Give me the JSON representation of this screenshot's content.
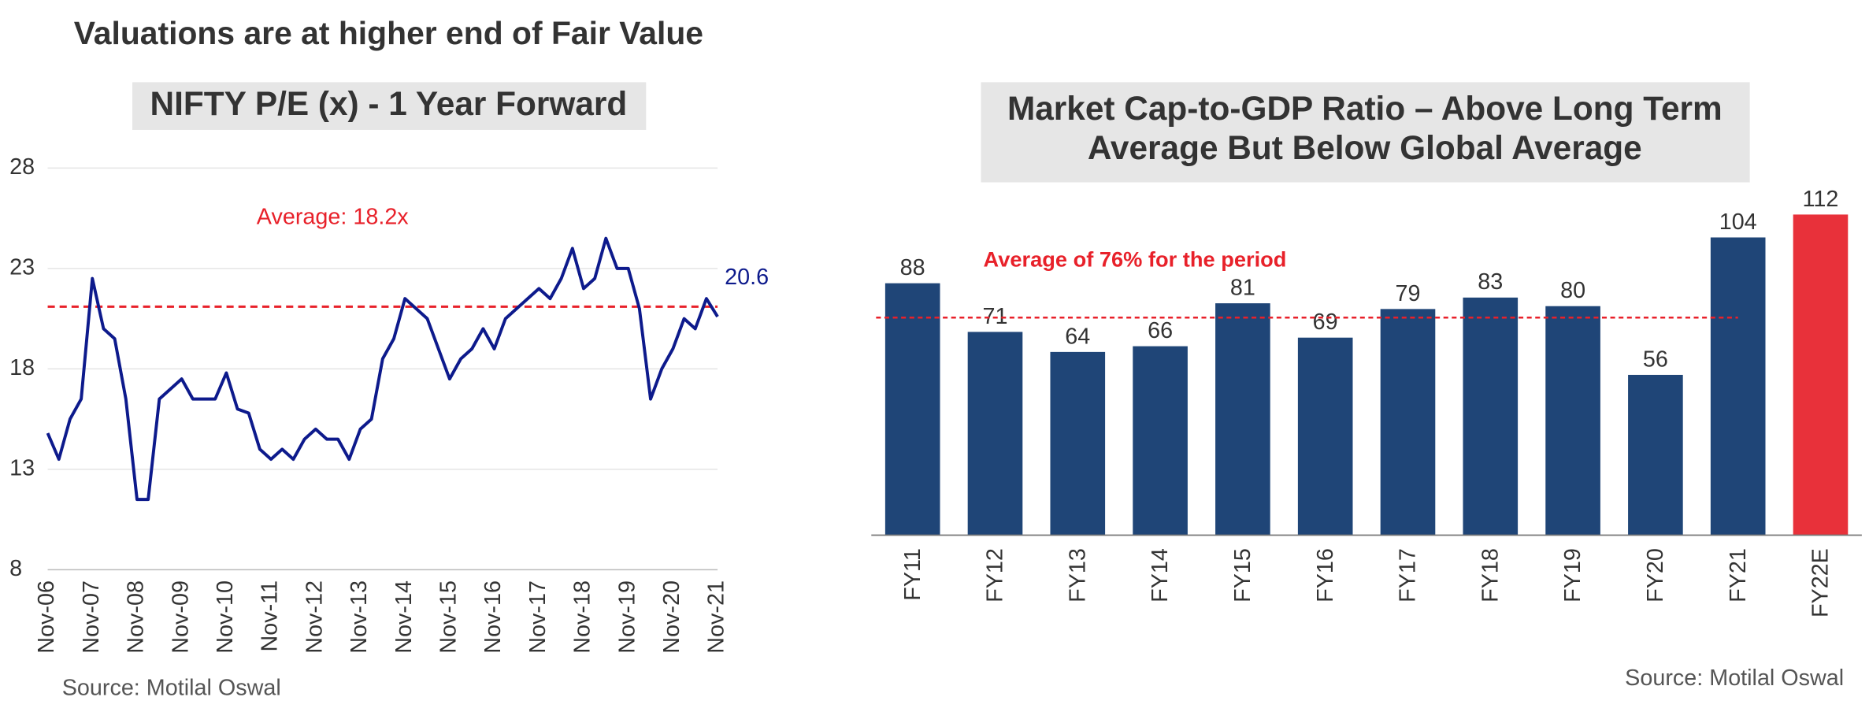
{
  "title": "Valuations are at higher end of Fair Value",
  "chart_data": [
    {
      "type": "line",
      "title": "NIFTY P/E (x) - 1 Year Forward",
      "categories": [
        "Nov-06",
        null,
        null,
        null,
        "Nov-07",
        null,
        null,
        null,
        "Nov-08",
        null,
        null,
        null,
        "Nov-09",
        null,
        null,
        null,
        "Nov-10",
        null,
        null,
        null,
        "Nov-11",
        null,
        null,
        null,
        "Nov-12",
        null,
        null,
        null,
        "Nov-13",
        null,
        null,
        null,
        "Nov-14",
        null,
        null,
        null,
        "Nov-15",
        null,
        null,
        null,
        "Nov-16",
        null,
        null,
        null,
        "Nov-17",
        null,
        null,
        null,
        "Nov-18",
        null,
        null,
        null,
        "Nov-19",
        null,
        null,
        null,
        "Nov-20",
        null,
        null,
        null,
        "Nov-21"
      ],
      "series": [
        {
          "name": "NIFTY P/E",
          "color": "#0d1a8c",
          "values": [
            14.8,
            13.5,
            15.5,
            16.5,
            22.5,
            20.0,
            19.5,
            16.5,
            11.5,
            11.5,
            16.5,
            17.0,
            17.5,
            16.5,
            16.5,
            16.5,
            17.8,
            16.0,
            15.8,
            14.0,
            13.5,
            14.0,
            13.5,
            14.5,
            15.0,
            14.5,
            14.5,
            13.5,
            15.0,
            15.5,
            18.5,
            19.5,
            21.5,
            21.0,
            20.5,
            19.0,
            17.5,
            18.5,
            19.0,
            20.0,
            19.0,
            20.5,
            21.0,
            21.5,
            22.0,
            21.5,
            22.5,
            24.0,
            22.0,
            22.5,
            24.5,
            23.0,
            23.0,
            21.0,
            16.5,
            18.0,
            19.0,
            20.5,
            20.0,
            21.5,
            20.6
          ]
        }
      ],
      "ylim": [
        8,
        28
      ],
      "yticks": [
        8,
        13,
        18,
        23,
        28
      ],
      "grid": true,
      "reference_line": {
        "value": 21.1,
        "color": "#e8212a"
      },
      "annotations": [
        "Average: 18.2x",
        "20.6"
      ],
      "source": "Source: Motilal Oswal"
    },
    {
      "type": "bar",
      "title": [
        "Market Cap-to-GDP Ratio – Above Long Term",
        "Average But Below Global Average"
      ],
      "categories": [
        "FY11",
        "FY12",
        "FY13",
        "FY14",
        "FY15",
        "FY16",
        "FY17",
        "FY18",
        "FY19",
        "FY20",
        "FY21",
        "FY22E"
      ],
      "values": [
        88,
        71,
        64,
        66,
        81,
        69,
        79,
        83,
        80,
        56,
        104,
        112
      ],
      "colors": [
        "#1f4577",
        "#1f4577",
        "#1f4577",
        "#1f4577",
        "#1f4577",
        "#1f4577",
        "#1f4577",
        "#1f4577",
        "#1f4577",
        "#1f4577",
        "#1f4577",
        "#e8313a"
      ],
      "reference_line": {
        "value": 76,
        "color": "#e8212a",
        "label": "Average of 76% for the period"
      },
      "source": "Source: Motilal Oswal"
    }
  ]
}
